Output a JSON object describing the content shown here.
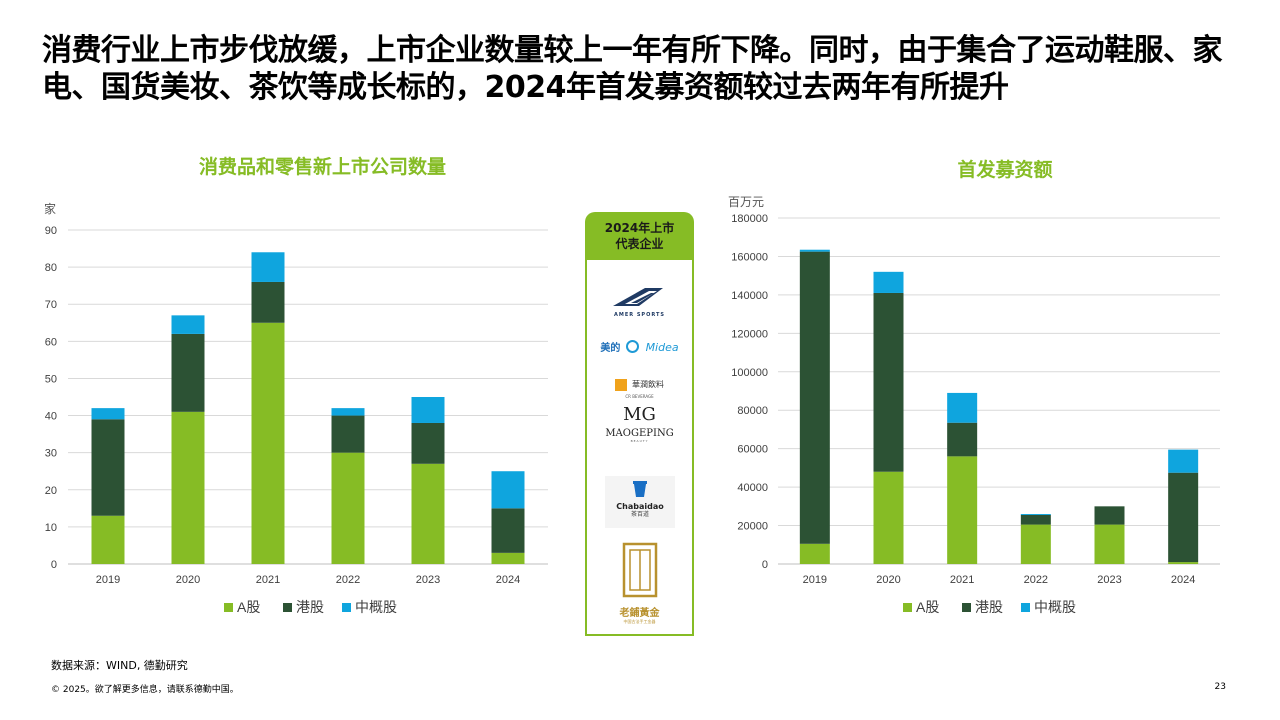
{
  "title": "消费行业上市步伐放缓，上市企业数量较上一年有所下降。同时，由于集合了运动鞋服、家电、国货美妆、茶饮等成长标的，2024年首发募资额较过去两年有所提升",
  "colors": {
    "a_share": "#86BC25",
    "hk_share": "#2C5234",
    "us_china": "#0FA5DE",
    "grid": "#D9D9D9"
  },
  "chart_data": [
    {
      "type": "bar",
      "stacked": true,
      "title": "消费品和零售新上市公司数量",
      "ylabel": "家",
      "categories": [
        "2019",
        "2020",
        "2021",
        "2022",
        "2023",
        "2024"
      ],
      "ylim": [
        0,
        90
      ],
      "yticks": [
        "90",
        "80",
        "70",
        "60",
        "50",
        "40",
        "30",
        "20",
        "10",
        "0"
      ],
      "series": [
        {
          "name": "A股",
          "values": [
            13,
            41,
            65,
            30,
            27,
            3
          ]
        },
        {
          "name": "港股",
          "values": [
            26,
            21,
            11,
            10,
            11,
            12
          ]
        },
        {
          "name": "中概股",
          "values": [
            3,
            5,
            8,
            2,
            7,
            10
          ]
        }
      ],
      "legend_position": "bottom"
    },
    {
      "type": "bar",
      "stacked": true,
      "title": "首发募资额",
      "ylabel": "百万元",
      "categories": [
        "2019",
        "2020",
        "2021",
        "2022",
        "2023",
        "2024"
      ],
      "ylim": [
        0,
        180000
      ],
      "yticks": [
        "180000",
        "160000",
        "140000",
        "120000",
        "100000",
        "80000",
        "60000",
        "40000",
        "20000",
        "0"
      ],
      "series": [
        {
          "name": "A股",
          "values": [
            10500,
            48000,
            56000,
            20500,
            20500,
            1000
          ]
        },
        {
          "name": "港股",
          "values": [
            152000,
            93000,
            17500,
            5000,
            9500,
            46500
          ]
        },
        {
          "name": "中概股",
          "values": [
            1000,
            11000,
            15500,
            500,
            0,
            12000
          ]
        }
      ],
      "legend_position": "bottom"
    }
  ],
  "panel": {
    "title_line1": "2024年上市",
    "title_line2": "代表企业",
    "logos": [
      {
        "name": "amer-sports",
        "text": "AMER SPORTS"
      },
      {
        "name": "midea",
        "text_cn": "美的",
        "text_en": "Midea"
      },
      {
        "name": "cr-beverage",
        "text_cn": "華潤飲料",
        "text_en": "CR BEVERAGE"
      },
      {
        "name": "maogeping",
        "mark": "MG",
        "text": "MAOGEPING",
        "sub": "BEAUTY"
      },
      {
        "name": "chabaidao",
        "text_en": "Chabaidao",
        "text_cn": "茶百道"
      },
      {
        "name": "laopu-gold",
        "text_cn": "老鋪黃金",
        "sub": "中国古法手工金器"
      }
    ]
  },
  "footer": {
    "source": "数据来源：WIND, 德勤研究",
    "copyright": "© 2025。欲了解更多信息，请联系德勤中国。",
    "page": "23"
  }
}
